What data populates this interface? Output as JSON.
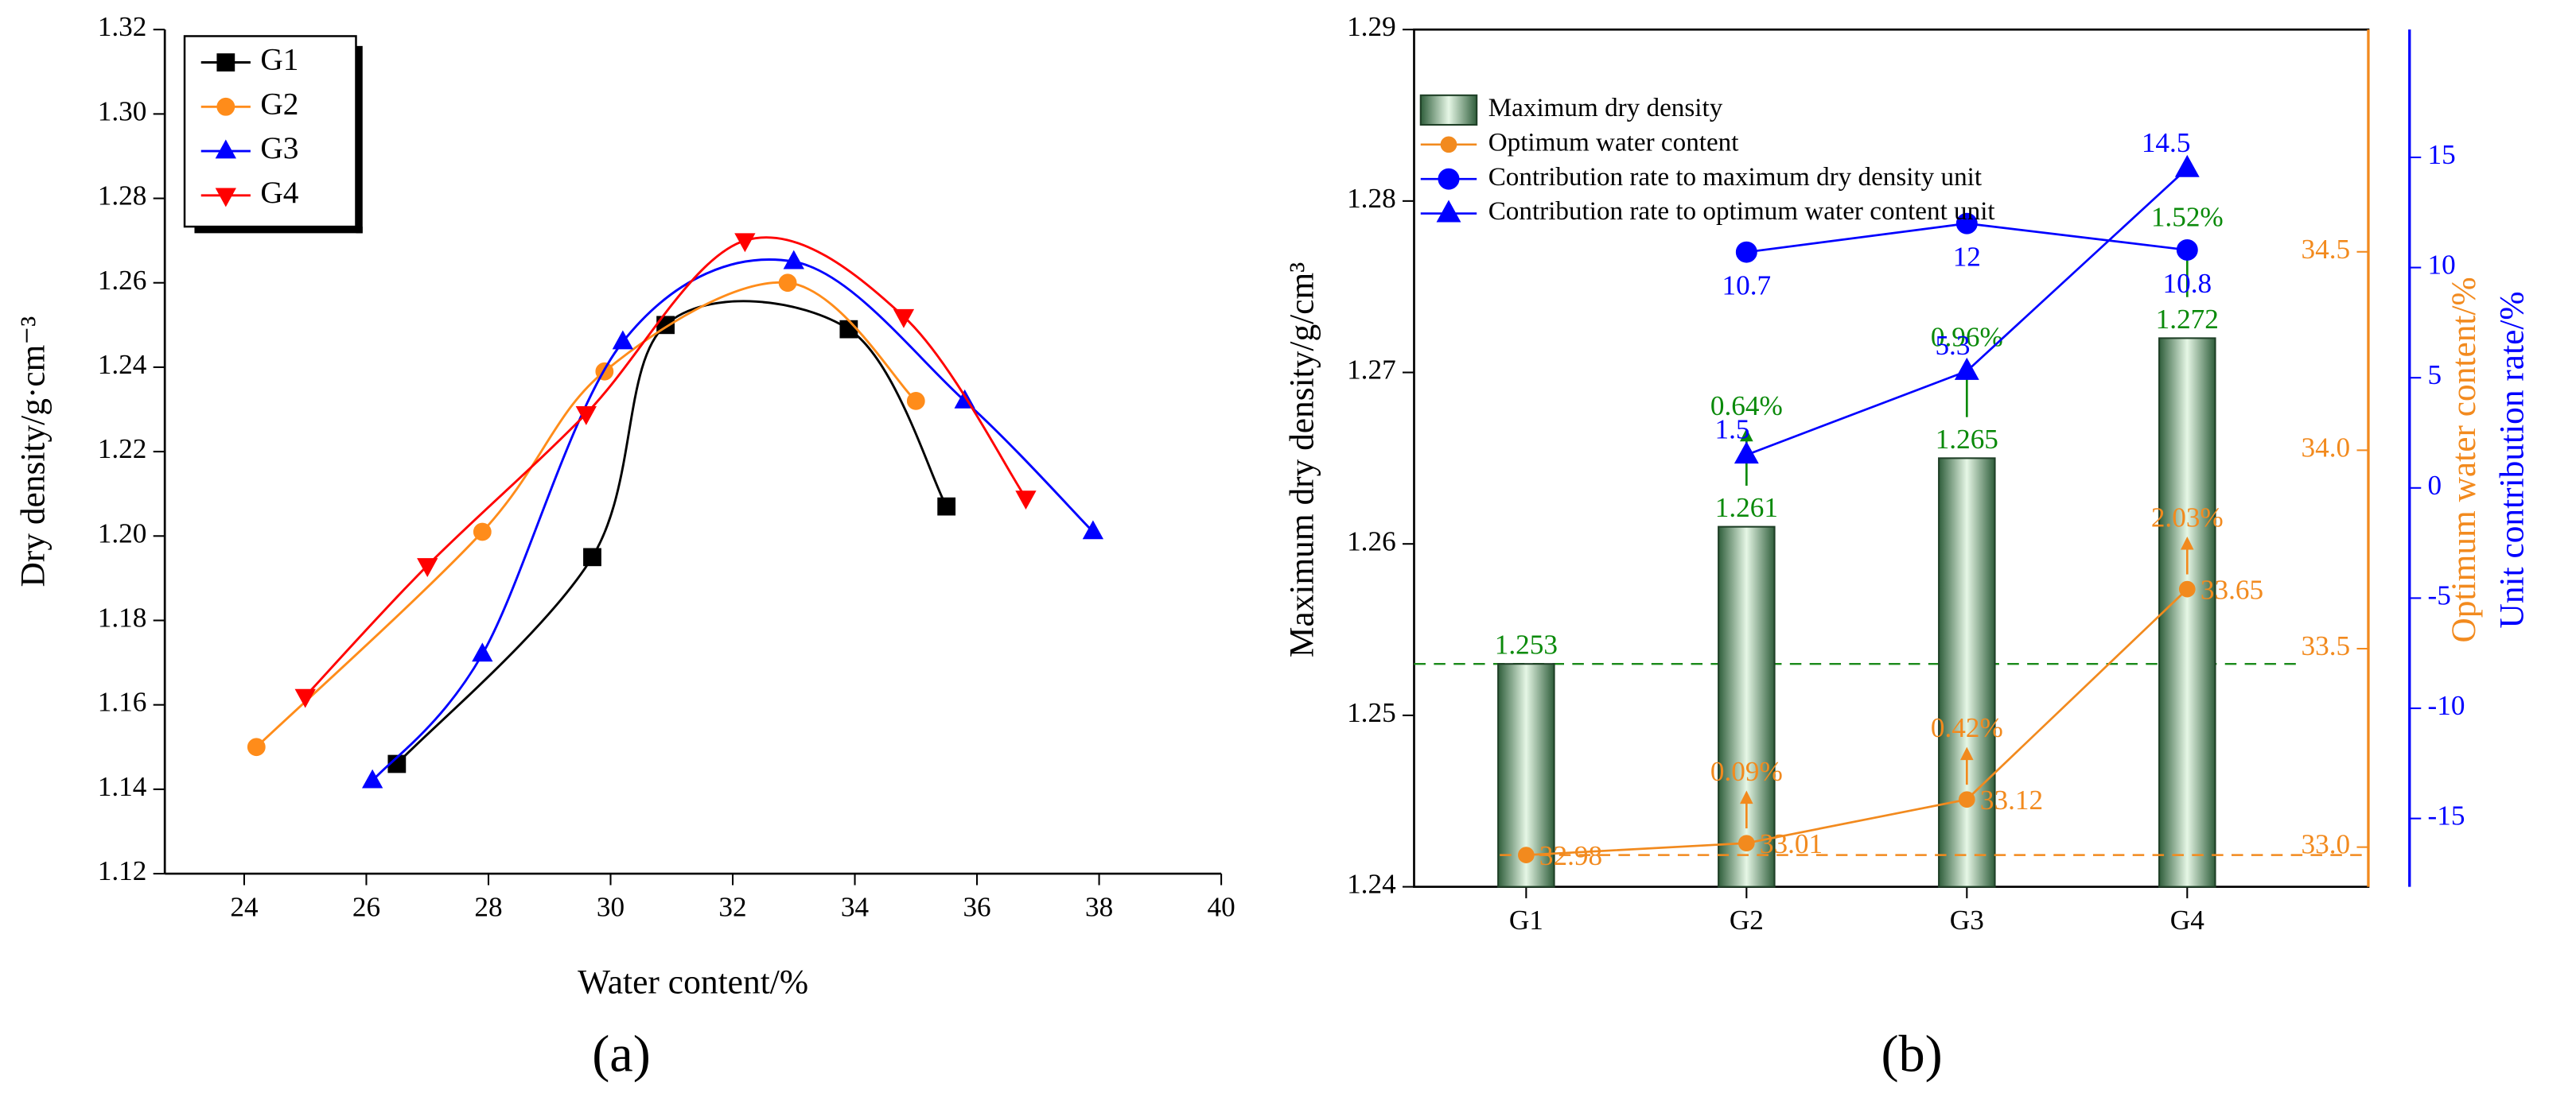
{
  "chart_data": [
    {
      "type": "line",
      "caption": "(a)",
      "x_label": "Water content/%",
      "y_label": "Dry density/g·cm⁻³",
      "xlim": [
        22.7,
        40
      ],
      "xticks": [
        24,
        26,
        28,
        30,
        32,
        34,
        36,
        38,
        40
      ],
      "ylim": [
        1.12,
        1.32
      ],
      "yticks": [
        1.12,
        1.14,
        1.16,
        1.18,
        {
          "value": 1.2,
          "label": "1.20"
        },
        1.22,
        1.24,
        1.26,
        1.28,
        {
          "value": 1.3,
          "label": "1.30"
        },
        1.32
      ],
      "legend": "upper left",
      "series": [
        {
          "name": "G1",
          "color": "#000000",
          "marker": "square",
          "x": [
            26.5,
            29.7,
            30.9,
            33.9,
            35.5
          ],
          "values": [
            1.146,
            1.195,
            1.25,
            1.249,
            1.207
          ]
        },
        {
          "name": "G2",
          "color": "#ff8c1a",
          "marker": "circle",
          "x": [
            24.2,
            27.9,
            29.9,
            32.9,
            35.0
          ],
          "values": [
            1.15,
            1.201,
            1.239,
            1.26,
            1.232
          ]
        },
        {
          "name": "G3",
          "color": "#0000ff",
          "marker": "triangle-up",
          "x": [
            26.1,
            27.9,
            30.2,
            33.0,
            35.8,
            37.9
          ],
          "values": [
            1.142,
            1.172,
            1.246,
            1.265,
            1.232,
            1.201
          ]
        },
        {
          "name": "G4",
          "color": "#ff0000",
          "marker": "triangle-down",
          "x": [
            25.0,
            27.0,
            29.6,
            32.2,
            34.8,
            36.8
          ],
          "values": [
            1.162,
            1.193,
            1.229,
            1.27,
            1.252,
            1.209
          ]
        }
      ]
    },
    {
      "type": "bar",
      "caption": "(b)",
      "y_label": "Maximum dry density/g/cm³",
      "y2_label": "Optimum water content/%",
      "y3_label": "Unit contribution rate/%",
      "categories": [
        "G1",
        "G2",
        "G3",
        "G4"
      ],
      "ylim": [
        1.24,
        1.29
      ],
      "yticks": [
        1.24,
        1.25,
        1.26,
        1.27,
        1.28,
        1.29
      ],
      "y2lim": [
        32.9,
        35.06
      ],
      "y2ticks": [
        {
          "value": 33,
          "label": "33.0"
        },
        33.5,
        {
          "value": 34,
          "label": "34.0"
        },
        34.5
      ],
      "y3lim": [
        -18.1,
        20.8
      ],
      "y3ticks": [
        -15,
        -10,
        -5,
        0,
        5,
        10,
        15
      ],
      "series": [
        {
          "name": "Maximum dry density",
          "kind": "bar",
          "color": "#3d7a4c",
          "values": [
            1.253,
            1.261,
            1.265,
            1.272
          ],
          "increase_labels": [
            null,
            "0.64%",
            "0.96%",
            "1.52%"
          ]
        },
        {
          "name": "Optimum water content",
          "kind": "line",
          "marker": "circle",
          "axis": "y2",
          "color": "#f28a1e",
          "values": [
            32.98,
            33.01,
            33.12,
            33.65
          ],
          "increase_labels": [
            null,
            "0.09%",
            "0.42%",
            "2.03%"
          ]
        },
        {
          "name": "Contribution rate to maximum dry density unit",
          "kind": "line",
          "marker": "circle",
          "axis": "y3",
          "color": "#0000ff",
          "values": [
            null,
            10.7,
            12,
            10.8
          ]
        },
        {
          "name": "Contribution rate to optimum water content unit",
          "kind": "line",
          "marker": "triangle-up",
          "axis": "y3",
          "color": "#0000ff",
          "values": [
            null,
            1.5,
            5.3,
            14.5
          ]
        }
      ]
    }
  ]
}
